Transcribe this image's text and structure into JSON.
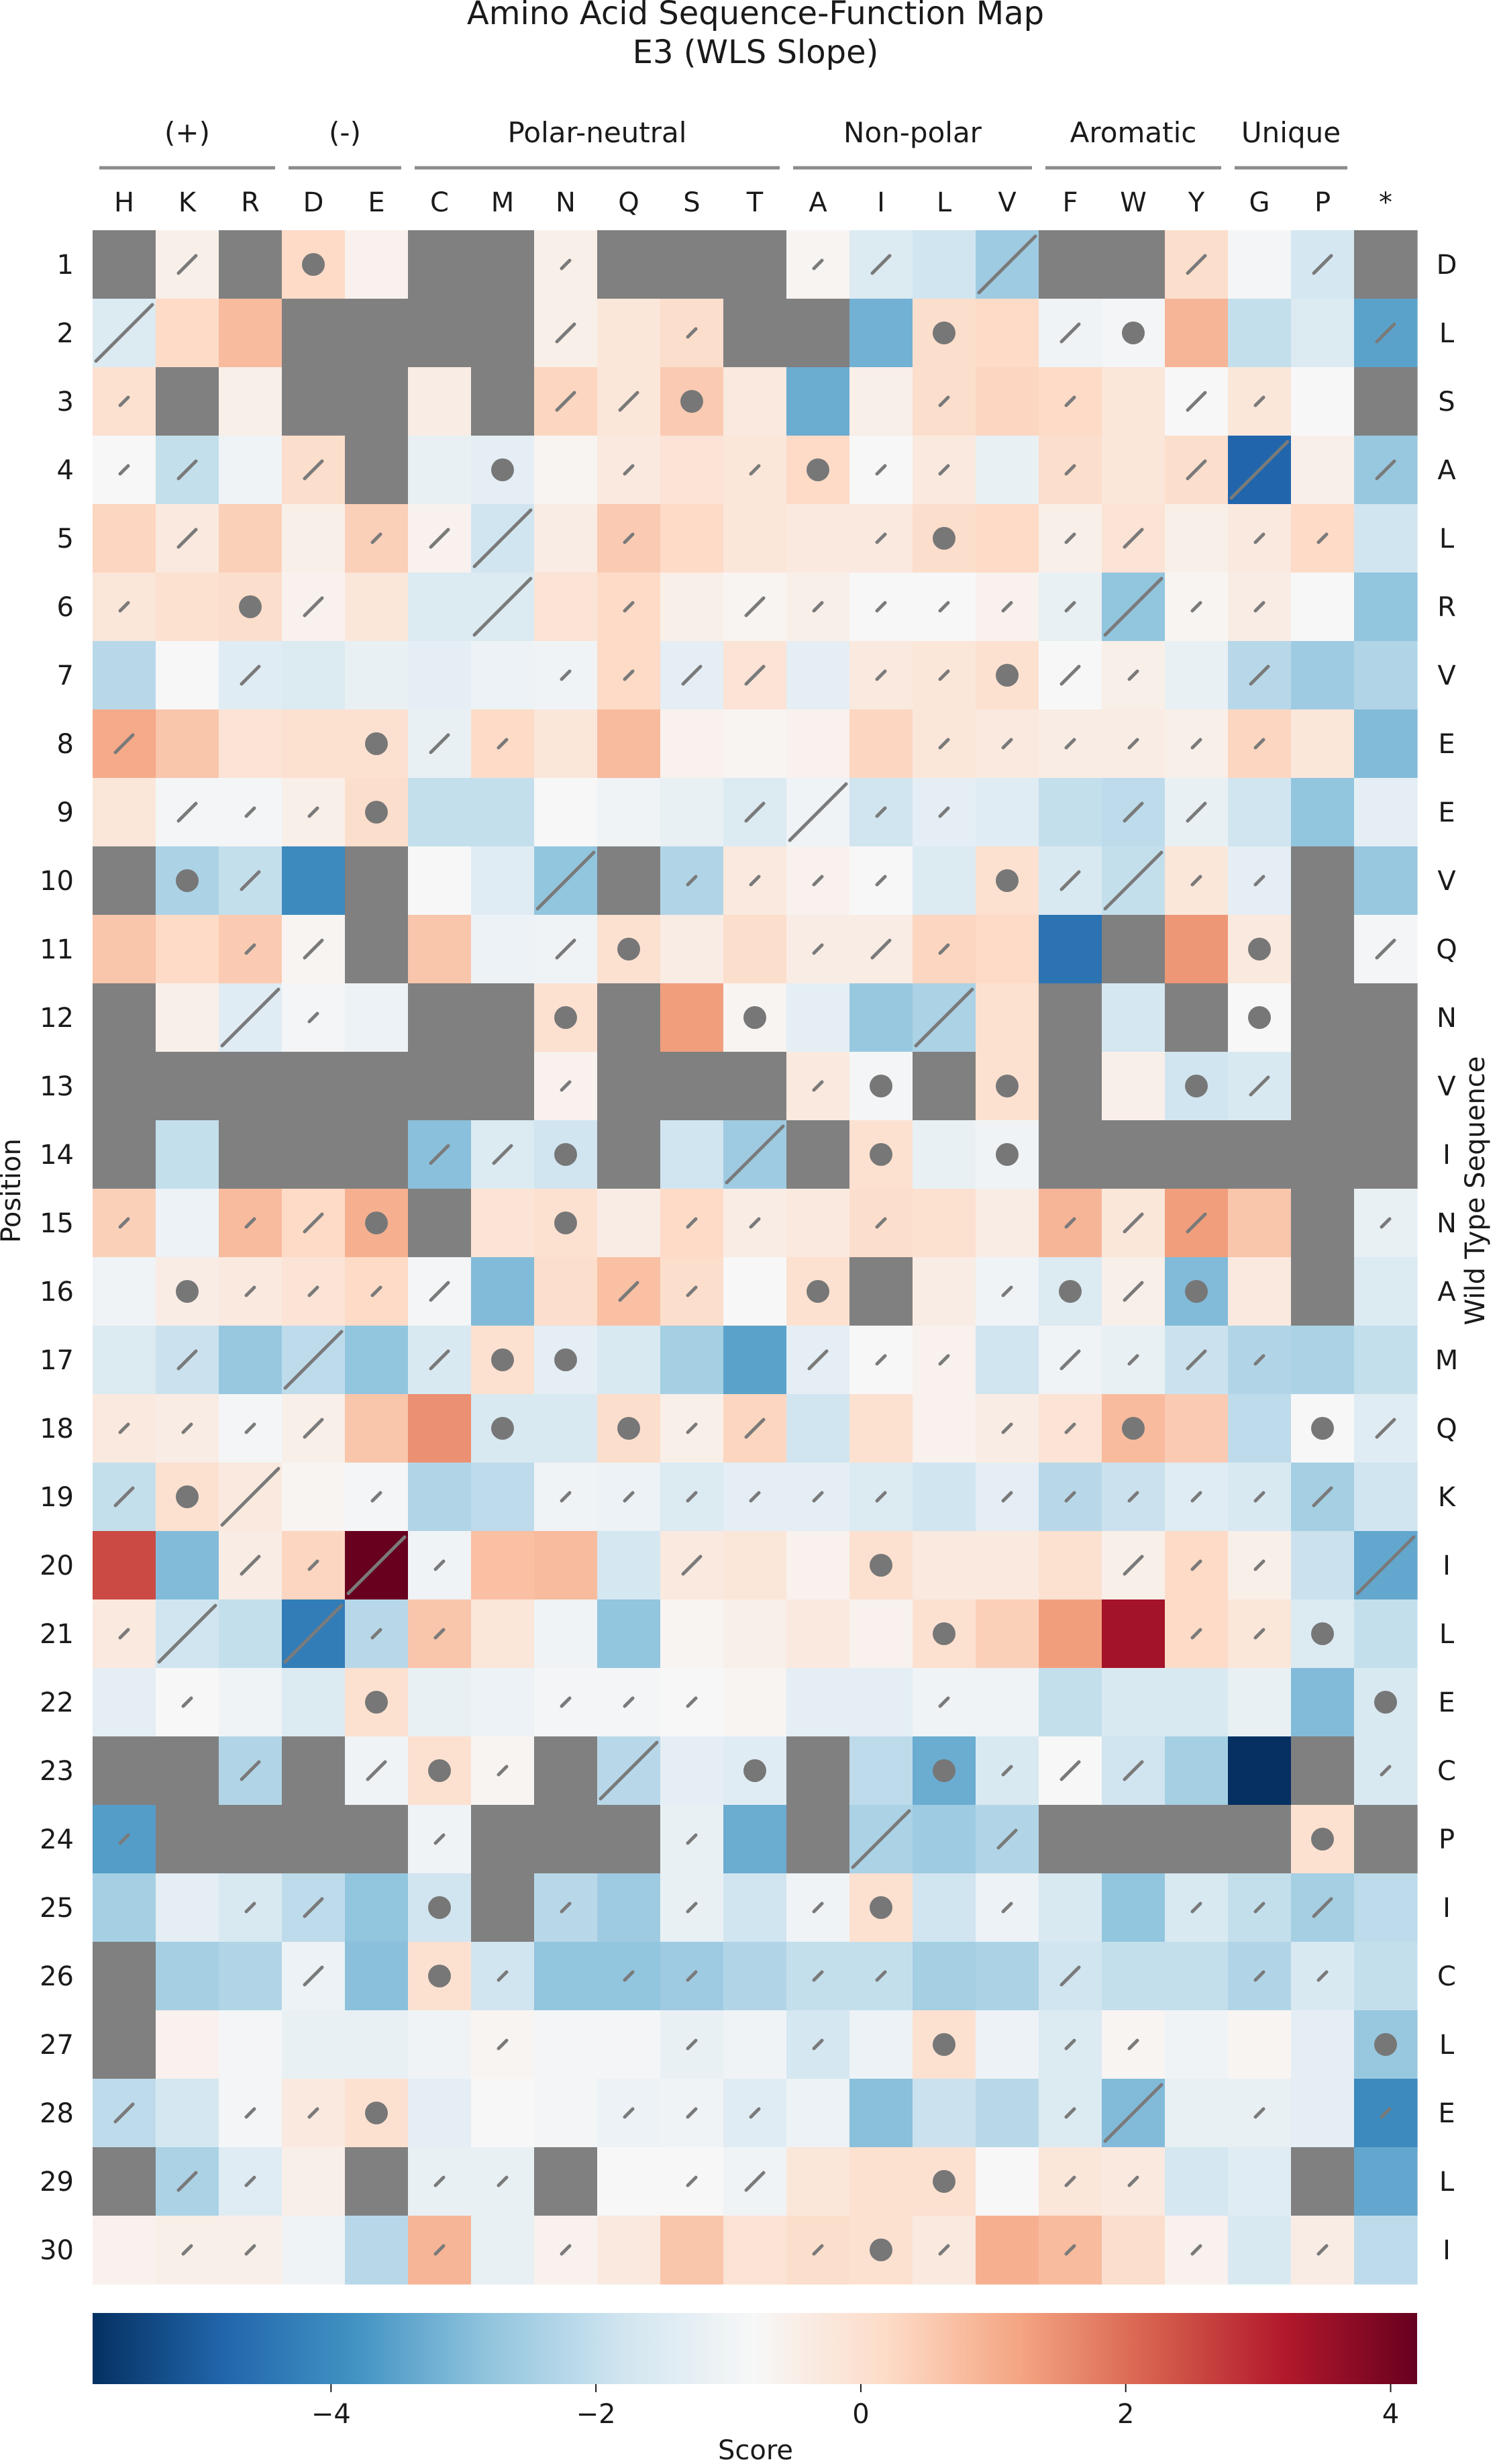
{
  "title": "Amino Acid Sequence-Function Map",
  "subtitle": "E3 (WLS Slope)",
  "chart_data": {
    "type": "heatmap",
    "columns": [
      "H",
      "K",
      "R",
      "D",
      "E",
      "C",
      "M",
      "N",
      "Q",
      "S",
      "T",
      "A",
      "I",
      "L",
      "V",
      "F",
      "W",
      "Y",
      "G",
      "P",
      "*"
    ],
    "groups": [
      {
        "label": "(+)",
        "start": 0,
        "end": 2
      },
      {
        "label": "(-)",
        "start": 3,
        "end": 4
      },
      {
        "label": "Polar-neutral",
        "start": 5,
        "end": 10
      },
      {
        "label": "Non-polar",
        "start": 11,
        "end": 14
      },
      {
        "label": "Aromatic",
        "start": 15,
        "end": 17
      },
      {
        "label": "Unique",
        "start": 18,
        "end": 19
      }
    ],
    "positions": [
      1,
      2,
      3,
      4,
      5,
      6,
      7,
      8,
      9,
      10,
      11,
      12,
      13,
      14,
      15,
      16,
      17,
      18,
      19,
      20,
      21,
      22,
      23,
      24,
      25,
      26,
      27,
      28,
      29,
      30
    ],
    "wild_type": [
      "D",
      "L",
      "S",
      "A",
      "L",
      "R",
      "V",
      "E",
      "E",
      "V",
      "Q",
      "N",
      "V",
      "I",
      "N",
      "A",
      "M",
      "Q",
      "K",
      "I",
      "L",
      "E",
      "C",
      "P",
      "I",
      "C",
      "L",
      "E",
      "L",
      "I"
    ],
    "ylabel": "Position",
    "y2label": "Wild Type Sequence",
    "colorbar": {
      "label": "Score",
      "min": -5.8,
      "max": 4.2,
      "ticks": [
        -4,
        -2,
        0,
        2,
        4
      ],
      "tick_labels": [
        "−4",
        "−2",
        "0",
        "2",
        "4"
      ],
      "colormap": "RdBu_r"
    },
    "missing_color": "#808080",
    "scores": [
      [
        null,
        -0.5,
        null,
        0.2,
        -0.6,
        null,
        null,
        -0.5,
        null,
        null,
        null,
        -0.7,
        -1.5,
        -1.8,
        -2.6,
        null,
        null,
        0.1,
        -0.9,
        -1.7,
        null
      ],
      [
        -1.5,
        0.2,
        0.8,
        null,
        null,
        null,
        null,
        -0.5,
        -0.2,
        0.1,
        null,
        null,
        -3.2,
        0.1,
        0.2,
        -1.0,
        -0.9,
        0.9,
        -2.0,
        -1.5,
        -3.5
      ],
      [
        0.0,
        null,
        -0.5,
        null,
        null,
        -0.4,
        null,
        0.3,
        -0.2,
        0.5,
        -0.3,
        -3.3,
        -0.5,
        0.1,
        0.3,
        0.2,
        -0.2,
        -0.8,
        -0.2,
        -0.8,
        null
      ],
      [
        -0.8,
        -2.0,
        -1.0,
        0.1,
        null,
        -1.2,
        -1.3,
        -0.7,
        -0.3,
        -0.1,
        -0.2,
        0.2,
        -0.8,
        -0.3,
        -1.2,
        0.1,
        -0.2,
        0.1,
        -4.8,
        -0.5,
        -2.7
      ],
      [
        0.3,
        -0.3,
        0.4,
        -0.5,
        0.4,
        -0.6,
        -1.8,
        -0.4,
        0.5,
        0.2,
        -0.2,
        -0.3,
        -0.3,
        0.1,
        0.2,
        -0.5,
        -0.1,
        -0.5,
        -0.3,
        0.2,
        -1.8
      ],
      [
        -0.2,
        0.0,
        0.1,
        -0.6,
        -0.2,
        -1.5,
        -1.5,
        -0.1,
        0.2,
        -0.5,
        -0.7,
        -0.5,
        -0.8,
        -0.8,
        -0.6,
        -1.2,
        -2.8,
        -0.7,
        -0.4,
        -0.8,
        -2.8
      ],
      [
        -2.2,
        -0.8,
        -1.4,
        -1.5,
        -1.2,
        -1.3,
        -1.1,
        -1.0,
        0.2,
        -1.3,
        -0.1,
        -1.3,
        -0.3,
        -0.2,
        0.0,
        -0.8,
        -0.5,
        -1.2,
        -2.2,
        -2.6,
        -2.3
      ],
      [
        1.1,
        0.6,
        -0.1,
        0.0,
        0.0,
        -1.2,
        0.2,
        -0.2,
        0.8,
        -0.6,
        -0.7,
        -0.6,
        0.3,
        -0.2,
        -0.3,
        -0.4,
        -0.4,
        -0.5,
        0.3,
        -0.2,
        -3.0
      ],
      [
        -0.2,
        -0.9,
        -0.9,
        -0.5,
        0.1,
        -2.0,
        -2.0,
        -0.8,
        -1.0,
        -1.2,
        -1.5,
        -1.0,
        -1.8,
        -1.3,
        -1.4,
        -2.0,
        -2.1,
        -1.2,
        -1.8,
        -2.8,
        -1.3
      ],
      [
        null,
        -2.4,
        -2.0,
        -4.0,
        null,
        -0.8,
        -1.4,
        -2.8,
        null,
        -2.3,
        -0.3,
        -0.6,
        -0.8,
        -1.5,
        0.0,
        -1.6,
        -2.0,
        -0.2,
        -1.3,
        null,
        -2.7
      ],
      [
        0.6,
        0.2,
        0.5,
        -0.7,
        null,
        0.6,
        -1.1,
        -1.0,
        0.0,
        -0.4,
        0.1,
        -0.4,
        -0.4,
        0.3,
        0.2,
        -4.5,
        null,
        1.4,
        -0.3,
        null,
        -0.9
      ],
      [
        null,
        -0.5,
        -1.4,
        -0.9,
        -1.1,
        null,
        null,
        0.0,
        null,
        1.3,
        -0.7,
        -1.3,
        -2.7,
        -2.4,
        0.0,
        null,
        -1.7,
        null,
        -0.8,
        null,
        null
      ],
      [
        null,
        null,
        null,
        null,
        null,
        null,
        null,
        -0.6,
        null,
        null,
        null,
        -0.3,
        -0.9,
        null,
        0.0,
        null,
        -0.5,
        -1.8,
        -1.6,
        null,
        null
      ],
      [
        null,
        -2.0,
        null,
        null,
        null,
        -2.9,
        -1.5,
        -1.8,
        null,
        -1.8,
        -2.6,
        null,
        0.0,
        -1.2,
        -1.0,
        null,
        null,
        null,
        null,
        null,
        null
      ],
      [
        0.4,
        -1.1,
        0.8,
        0.2,
        1.0,
        null,
        -0.1,
        0.0,
        -0.4,
        0.2,
        -0.4,
        -0.3,
        0.1,
        0.0,
        -0.4,
        0.9,
        -0.2,
        1.3,
        0.6,
        null,
        -1.2
      ],
      [
        -1.0,
        -0.4,
        -0.3,
        -0.1,
        0.2,
        -0.9,
        -3.0,
        0.1,
        0.7,
        0.1,
        -0.8,
        0.0,
        null,
        -0.4,
        -1.0,
        -1.5,
        -0.5,
        -3.0,
        -0.3,
        null,
        -1.5
      ],
      [
        -1.5,
        -1.9,
        -2.7,
        -2.1,
        -2.8,
        -1.6,
        0.0,
        -1.3,
        -1.6,
        -2.5,
        -3.5,
        -1.3,
        -0.8,
        -0.6,
        -1.8,
        -1.0,
        -1.2,
        -1.9,
        -2.3,
        -2.4,
        -2.0
      ],
      [
        -0.3,
        -0.4,
        -0.9,
        -0.5,
        0.6,
        1.5,
        -1.6,
        -1.6,
        0.1,
        -0.5,
        0.3,
        -1.8,
        0.0,
        -0.6,
        -0.4,
        -0.1,
        0.8,
        0.5,
        -2.1,
        -0.8,
        -1.4
      ],
      [
        -2.0,
        0.0,
        -0.3,
        -0.7,
        -0.9,
        -2.3,
        -2.1,
        -1.0,
        -1.1,
        -1.5,
        -1.3,
        -1.3,
        -1.5,
        -1.8,
        -1.3,
        -2.2,
        -1.9,
        -1.4,
        -1.6,
        -2.5,
        -1.8
      ],
      [
        2.5,
        -3.0,
        -0.4,
        0.3,
        4.2,
        -1.0,
        0.7,
        0.8,
        -1.7,
        -0.3,
        -0.2,
        -0.6,
        0.0,
        -0.3,
        -0.3,
        0.0,
        -0.5,
        0.2,
        -0.5,
        -1.9,
        -3.4
      ],
      [
        -0.3,
        -1.8,
        -2.0,
        -4.3,
        -2.2,
        0.6,
        -0.2,
        -1.0,
        -2.8,
        -0.7,
        -0.5,
        -0.3,
        -0.6,
        0.0,
        0.4,
        1.3,
        3.4,
        0.2,
        -0.2,
        -1.5,
        -2.0
      ],
      [
        -1.3,
        -0.8,
        -1.0,
        -1.5,
        0.0,
        -1.2,
        -1.1,
        -0.9,
        -0.9,
        -0.8,
        -0.7,
        -1.3,
        -1.3,
        -1.0,
        -1.0,
        -2.0,
        -1.6,
        -1.6,
        -1.2,
        -3.0,
        -1.6
      ],
      [
        null,
        null,
        -2.3,
        null,
        -1.0,
        0.0,
        -0.7,
        null,
        -2.2,
        -1.3,
        -1.4,
        null,
        -2.1,
        -3.3,
        -1.6,
        -0.8,
        -1.8,
        -2.5,
        -5.8,
        null,
        -1.6
      ],
      [
        -3.6,
        null,
        null,
        null,
        null,
        -1.0,
        null,
        null,
        null,
        -1.2,
        -3.3,
        null,
        -2.4,
        -2.6,
        -2.3,
        null,
        null,
        null,
        null,
        0.0,
        null
      ],
      [
        -2.5,
        -1.3,
        -1.6,
        -2.1,
        -2.8,
        -1.8,
        null,
        -2.2,
        -2.6,
        -1.2,
        -1.8,
        -1.0,
        0.0,
        -1.8,
        -1.1,
        -1.6,
        -2.8,
        -1.6,
        -2.0,
        -2.5,
        -2.1
      ],
      [
        null,
        -2.5,
        -2.3,
        -1.1,
        -2.9,
        0.0,
        -1.8,
        -2.8,
        -2.8,
        -2.6,
        -2.3,
        -2.0,
        -2.0,
        -2.5,
        -2.4,
        -1.8,
        -2.0,
        -2.0,
        -2.3,
        -1.6,
        -2.0
      ],
      [
        null,
        -0.6,
        -0.9,
        -1.2,
        -1.2,
        -1.0,
        -0.7,
        -0.9,
        -0.9,
        -1.2,
        -1.0,
        -1.7,
        -1.1,
        0.0,
        -1.1,
        -1.5,
        -0.7,
        -1.0,
        -0.7,
        -1.3,
        -2.7
      ],
      [
        -2.1,
        -1.7,
        -0.9,
        -0.3,
        0.0,
        -1.3,
        -0.8,
        -0.9,
        -1.1,
        -1.0,
        -1.4,
        -1.1,
        -2.9,
        -1.9,
        -2.2,
        -1.5,
        -3.0,
        -1.2,
        -1.2,
        -1.3,
        -4.0
      ],
      [
        null,
        -2.4,
        -1.4,
        -0.5,
        null,
        -1.2,
        -1.2,
        null,
        -0.8,
        -0.8,
        -1.0,
        -0.2,
        0.0,
        0.0,
        -0.8,
        -0.2,
        -0.3,
        -1.7,
        -1.4,
        null,
        -3.4
      ],
      [
        -0.6,
        -0.5,
        -0.5,
        -1.0,
        -2.2,
        0.9,
        -1.2,
        -0.6,
        -0.3,
        0.6,
        -0.1,
        0.1,
        0.0,
        -0.3,
        1.0,
        0.8,
        0.1,
        -0.6,
        -1.6,
        -0.4,
        -2.1
      ]
    ],
    "marks": [
      [
        0,
        2,
        0,
        3,
        0,
        0,
        0,
        1,
        0,
        0,
        0,
        1,
        2,
        0,
        4,
        0,
        0,
        2,
        0,
        2,
        0
      ],
      [
        4,
        0,
        0,
        0,
        0,
        0,
        0,
        2,
        0,
        1,
        0,
        0,
        0,
        3,
        0,
        2,
        3,
        0,
        0,
        0,
        2
      ],
      [
        1,
        0,
        0,
        0,
        0,
        0,
        0,
        2,
        2,
        3,
        0,
        0,
        0,
        1,
        0,
        1,
        0,
        2,
        1,
        0,
        0
      ],
      [
        1,
        2,
        0,
        2,
        0,
        0,
        3,
        0,
        1,
        0,
        1,
        3,
        1,
        1,
        0,
        1,
        0,
        2,
        4,
        0,
        2
      ],
      [
        0,
        2,
        0,
        0,
        1,
        2,
        4,
        0,
        1,
        0,
        0,
        0,
        1,
        3,
        0,
        1,
        2,
        0,
        1,
        1,
        0
      ],
      [
        1,
        0,
        3,
        2,
        0,
        0,
        4,
        0,
        1,
        0,
        2,
        1,
        1,
        1,
        1,
        1,
        4,
        1,
        1,
        0,
        0
      ],
      [
        0,
        0,
        2,
        0,
        0,
        0,
        0,
        1,
        1,
        2,
        2,
        0,
        1,
        1,
        3,
        2,
        1,
        0,
        2,
        0,
        0
      ],
      [
        2,
        0,
        0,
        0,
        3,
        2,
        1,
        0,
        0,
        0,
        0,
        0,
        0,
        1,
        1,
        1,
        1,
        1,
        1,
        0,
        0
      ],
      [
        0,
        2,
        1,
        1,
        3,
        0,
        0,
        0,
        0,
        0,
        2,
        4,
        1,
        1,
        0,
        0,
        2,
        2,
        0,
        0,
        0
      ],
      [
        0,
        3,
        2,
        0,
        0,
        0,
        0,
        4,
        0,
        1,
        1,
        1,
        1,
        0,
        3,
        2,
        4,
        1,
        1,
        0,
        0
      ],
      [
        0,
        0,
        1,
        2,
        0,
        0,
        0,
        2,
        3,
        0,
        0,
        1,
        2,
        1,
        0,
        0,
        0,
        0,
        3,
        0,
        2
      ],
      [
        0,
        0,
        4,
        1,
        0,
        0,
        0,
        3,
        0,
        0,
        3,
        0,
        0,
        4,
        0,
        0,
        0,
        0,
        3,
        0,
        0
      ],
      [
        0,
        0,
        0,
        0,
        0,
        0,
        0,
        1,
        0,
        0,
        0,
        1,
        3,
        0,
        3,
        0,
        0,
        3,
        2,
        0,
        0
      ],
      [
        0,
        0,
        0,
        0,
        0,
        2,
        2,
        3,
        0,
        0,
        4,
        0,
        3,
        0,
        3,
        0,
        0,
        0,
        0,
        0,
        0
      ],
      [
        1,
        0,
        1,
        2,
        3,
        0,
        0,
        3,
        0,
        1,
        1,
        0,
        1,
        0,
        0,
        1,
        2,
        2,
        0,
        0,
        1
      ],
      [
        0,
        3,
        1,
        1,
        1,
        2,
        0,
        0,
        2,
        1,
        0,
        3,
        0,
        0,
        1,
        3,
        2,
        3,
        0,
        0,
        0
      ],
      [
        0,
        2,
        0,
        4,
        0,
        2,
        3,
        3,
        0,
        0,
        0,
        2,
        1,
        1,
        0,
        2,
        1,
        2,
        1,
        0,
        0
      ],
      [
        1,
        1,
        1,
        2,
        0,
        0,
        3,
        0,
        3,
        1,
        2,
        0,
        0,
        0,
        1,
        1,
        3,
        0,
        0,
        3,
        2
      ],
      [
        2,
        3,
        4,
        0,
        1,
        0,
        0,
        1,
        1,
        1,
        1,
        1,
        1,
        0,
        1,
        1,
        1,
        1,
        1,
        2,
        0
      ],
      [
        0,
        0,
        2,
        1,
        4,
        1,
        0,
        0,
        0,
        2,
        0,
        0,
        3,
        0,
        0,
        0,
        2,
        1,
        1,
        0,
        4
      ],
      [
        1,
        4,
        0,
        4,
        1,
        1,
        0,
        0,
        0,
        0,
        0,
        0,
        0,
        3,
        0,
        0,
        0,
        1,
        1,
        3,
        0
      ],
      [
        0,
        1,
        0,
        0,
        3,
        0,
        0,
        1,
        1,
        1,
        0,
        0,
        0,
        1,
        0,
        0,
        0,
        0,
        0,
        0,
        3
      ],
      [
        0,
        0,
        2,
        0,
        2,
        3,
        1,
        0,
        4,
        0,
        3,
        0,
        0,
        3,
        1,
        2,
        2,
        0,
        0,
        0,
        1
      ],
      [
        1,
        0,
        0,
        0,
        0,
        1,
        0,
        0,
        0,
        1,
        0,
        0,
        4,
        0,
        2,
        0,
        0,
        0,
        0,
        3,
        0
      ],
      [
        0,
        0,
        1,
        2,
        0,
        3,
        0,
        1,
        0,
        1,
        0,
        1,
        3,
        0,
        1,
        0,
        0,
        1,
        1,
        2,
        0
      ],
      [
        0,
        0,
        0,
        2,
        0,
        3,
        1,
        0,
        1,
        1,
        0,
        1,
        1,
        0,
        0,
        2,
        0,
        0,
        1,
        1,
        0
      ],
      [
        0,
        0,
        0,
        0,
        0,
        0,
        1,
        0,
        0,
        1,
        0,
        1,
        0,
        3,
        0,
        1,
        1,
        0,
        0,
        0,
        3
      ],
      [
        2,
        0,
        1,
        1,
        3,
        0,
        0,
        0,
        1,
        1,
        1,
        0,
        0,
        0,
        0,
        1,
        4,
        0,
        1,
        0,
        1
      ],
      [
        0,
        2,
        1,
        0,
        0,
        1,
        1,
        0,
        0,
        1,
        2,
        0,
        0,
        3,
        0,
        1,
        1,
        0,
        0,
        0,
        0
      ],
      [
        0,
        1,
        1,
        0,
        0,
        1,
        0,
        1,
        0,
        0,
        0,
        1,
        3,
        1,
        0,
        1,
        0,
        1,
        0,
        1,
        0
      ]
    ]
  }
}
